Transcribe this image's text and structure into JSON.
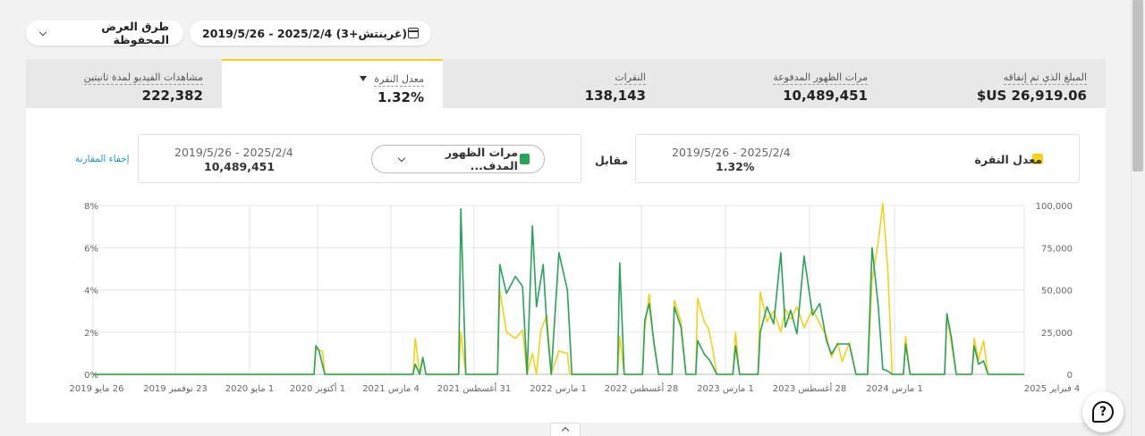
{
  "header": {
    "date_range": "2019/5/26 - 2025/2/4 (غرينتش+3)",
    "saved_views": "طرق العرض المحفوظة"
  },
  "metrics": [
    {
      "label": "المبلغ الذي تم إنفاقه",
      "value": "$US 26,919.06"
    },
    {
      "label": "مرات الظهور المدفوعة",
      "value": "10,489,451"
    },
    {
      "label": "النقرات",
      "value": "138,143"
    },
    {
      "label": "معدل النقرة",
      "value": "1.32%",
      "active": true
    },
    {
      "label": "مشاهدات الفيديو لمدة ثانيتين",
      "value": "222,382"
    }
  ],
  "comparison": {
    "primary": {
      "name": "معدل النقرة",
      "date": "2019/5/26 - 2025/2/4",
      "value": "1.32%",
      "color": "#f5d218"
    },
    "vs_label": "مقابل",
    "secondary": {
      "name": "مرات الظهور المدف...",
      "date": "2019/5/26 - 2025/2/4",
      "value": "10,489,451",
      "color": "#27a35a"
    },
    "hide_link": "إخفاء المقارنة"
  },
  "chart_data": {
    "type": "line",
    "title": "",
    "x_tick_labels": [
      "26 مايو 2019",
      "23 نوفمبر 2019",
      "1 مايو 2020",
      "1 أكتوبر 2020",
      "4 مارس 2021",
      "31 أغسطس 2021",
      "1 مارس 2022",
      "28 أغسطس 2022",
      "1 مارس 2023",
      "28 أغسطس 2023",
      "1 مارس 2024",
      "4 فبراير 2025"
    ],
    "y_left": {
      "ticks": [
        "0%",
        "2%",
        "4%",
        "6%",
        "8%"
      ],
      "ylim": [
        0,
        8
      ]
    },
    "y_right": {
      "ticks": [
        "0",
        "25,000",
        "50,000",
        "75,000",
        "100,000"
      ],
      "ylim": [
        0,
        100000
      ]
    },
    "series": [
      {
        "name": "معدل النقرة",
        "color": "#f5d218",
        "axis": "left",
        "points": [
          [
            "2019-05-26",
            0
          ],
          [
            "2020-10-01",
            0
          ],
          [
            "2020-10-05",
            1.2
          ],
          [
            "2020-10-20",
            1.1
          ],
          [
            "2020-10-25",
            0
          ],
          [
            "2021-05-10",
            0
          ],
          [
            "2021-05-15",
            1.7
          ],
          [
            "2021-05-25",
            0
          ],
          [
            "2021-06-01",
            0.8
          ],
          [
            "2021-06-08",
            0
          ],
          [
            "2021-08-20",
            0
          ],
          [
            "2021-08-25",
            2.0
          ],
          [
            "2021-09-05",
            0
          ],
          [
            "2021-11-15",
            0
          ],
          [
            "2021-11-20",
            4.0
          ],
          [
            "2021-12-05",
            2.0
          ],
          [
            "2021-12-25",
            1.7
          ],
          [
            "2022-01-10",
            2.1
          ],
          [
            "2022-01-20",
            0
          ],
          [
            "2022-02-01",
            1.0
          ],
          [
            "2022-02-10",
            0
          ],
          [
            "2022-02-20",
            2.1
          ],
          [
            "2022-03-05",
            2.8
          ],
          [
            "2022-03-15",
            0
          ],
          [
            "2022-04-01",
            1.1
          ],
          [
            "2022-04-20",
            1.0
          ],
          [
            "2022-04-25",
            0
          ],
          [
            "2022-08-10",
            0
          ],
          [
            "2022-08-15",
            1.8
          ],
          [
            "2022-08-25",
            0
          ],
          [
            "2022-10-05",
            0
          ],
          [
            "2022-10-10",
            2.2
          ],
          [
            "2022-10-20",
            3.8
          ],
          [
            "2022-10-30",
            1.5
          ],
          [
            "2022-11-10",
            0
          ],
          [
            "2022-12-10",
            0
          ],
          [
            "2022-12-15",
            3.5
          ],
          [
            "2022-12-30",
            2.5
          ],
          [
            "2023-01-10",
            0
          ],
          [
            "2023-02-01",
            0
          ],
          [
            "2023-02-05",
            3.6
          ],
          [
            "2023-02-20",
            2.5
          ],
          [
            "2023-03-01",
            2.2
          ],
          [
            "2023-03-10",
            1.3
          ],
          [
            "2023-03-20",
            0
          ],
          [
            "2023-04-25",
            0
          ],
          [
            "2023-05-01",
            2.0
          ],
          [
            "2023-05-10",
            0
          ],
          [
            "2023-06-20",
            0
          ],
          [
            "2023-06-25",
            3.9
          ],
          [
            "2023-07-10",
            2.5
          ],
          [
            "2023-07-25",
            3.0
          ],
          [
            "2023-08-10",
            2.0
          ],
          [
            "2023-08-20",
            3.1
          ],
          [
            "2023-09-01",
            2.6
          ],
          [
            "2023-09-15",
            3.2
          ],
          [
            "2023-10-01",
            2.2
          ],
          [
            "2023-10-20",
            3.1
          ],
          [
            "2023-11-05",
            2.4
          ],
          [
            "2023-11-20",
            1.8
          ],
          [
            "2023-12-01",
            0.8
          ],
          [
            "2023-12-15",
            1.5
          ],
          [
            "2023-12-25",
            0.6
          ],
          [
            "2024-01-10",
            1.5
          ],
          [
            "2024-01-25",
            0
          ],
          [
            "2024-02-20",
            0
          ],
          [
            "2024-03-01",
            4.5
          ],
          [
            "2024-03-15",
            6.3
          ],
          [
            "2024-03-25",
            8.1
          ],
          [
            "2024-04-05",
            5.0
          ],
          [
            "2024-04-15",
            0
          ],
          [
            "2024-05-10",
            0
          ],
          [
            "2024-05-15",
            1.8
          ],
          [
            "2024-05-25",
            0
          ],
          [
            "2024-08-10",
            0
          ],
          [
            "2024-08-15",
            2.8
          ],
          [
            "2024-08-25",
            1.5
          ],
          [
            "2024-09-05",
            0
          ],
          [
            "2024-10-10",
            0
          ],
          [
            "2024-10-15",
            1.7
          ],
          [
            "2024-10-25",
            0.7
          ],
          [
            "2024-11-05",
            1.6
          ],
          [
            "2024-11-15",
            0
          ],
          [
            "2025-02-04",
            0
          ]
        ]
      },
      {
        "name": "مرات الظهور المدف...",
        "color": "#27a35a",
        "axis": "right",
        "points": [
          [
            "2019-05-26",
            0
          ],
          [
            "2020-10-01",
            0
          ],
          [
            "2020-10-05",
            17000
          ],
          [
            "2020-10-12",
            14000
          ],
          [
            "2020-10-25",
            0
          ],
          [
            "2021-05-10",
            0
          ],
          [
            "2021-05-15",
            6000
          ],
          [
            "2021-05-25",
            0
          ],
          [
            "2021-06-01",
            10000
          ],
          [
            "2021-06-08",
            0
          ],
          [
            "2021-08-20",
            0
          ],
          [
            "2021-08-25",
            98000
          ],
          [
            "2021-09-05",
            0
          ],
          [
            "2021-11-15",
            0
          ],
          [
            "2021-11-20",
            65000
          ],
          [
            "2021-12-05",
            48000
          ],
          [
            "2021-12-25",
            58000
          ],
          [
            "2022-01-10",
            52000
          ],
          [
            "2022-01-20",
            0
          ],
          [
            "2022-02-01",
            88000
          ],
          [
            "2022-02-10",
            40000
          ],
          [
            "2022-02-25",
            65000
          ],
          [
            "2022-03-05",
            30000
          ],
          [
            "2022-03-15",
            0
          ],
          [
            "2022-04-01",
            72000
          ],
          [
            "2022-04-20",
            50000
          ],
          [
            "2022-04-30",
            0
          ],
          [
            "2022-08-10",
            0
          ],
          [
            "2022-08-15",
            66000
          ],
          [
            "2022-08-25",
            0
          ],
          [
            "2022-10-05",
            0
          ],
          [
            "2022-10-10",
            32000
          ],
          [
            "2022-10-20",
            42000
          ],
          [
            "2022-10-30",
            20000
          ],
          [
            "2022-11-10",
            0
          ],
          [
            "2022-12-10",
            0
          ],
          [
            "2022-12-15",
            40000
          ],
          [
            "2022-12-30",
            28000
          ],
          [
            "2023-01-10",
            0
          ],
          [
            "2023-02-01",
            0
          ],
          [
            "2023-02-05",
            20000
          ],
          [
            "2023-02-20",
            12000
          ],
          [
            "2023-03-05",
            8000
          ],
          [
            "2023-03-20",
            0
          ],
          [
            "2023-04-25",
            0
          ],
          [
            "2023-05-01",
            17000
          ],
          [
            "2023-05-10",
            0
          ],
          [
            "2023-06-20",
            0
          ],
          [
            "2023-06-25",
            25000
          ],
          [
            "2023-07-10",
            40000
          ],
          [
            "2023-07-25",
            30000
          ],
          [
            "2023-08-10",
            72000
          ],
          [
            "2023-08-20",
            28000
          ],
          [
            "2023-09-01",
            38000
          ],
          [
            "2023-09-15",
            24000
          ],
          [
            "2023-10-01",
            70000
          ],
          [
            "2023-10-20",
            35000
          ],
          [
            "2023-11-05",
            42000
          ],
          [
            "2023-11-20",
            20000
          ],
          [
            "2023-12-01",
            12000
          ],
          [
            "2023-12-15",
            18000
          ],
          [
            "2024-01-10",
            18000
          ],
          [
            "2024-01-25",
            0
          ],
          [
            "2024-02-20",
            0
          ],
          [
            "2024-03-01",
            75000
          ],
          [
            "2024-03-15",
            40000
          ],
          [
            "2024-03-25",
            3000
          ],
          [
            "2024-04-05",
            2000
          ],
          [
            "2024-04-15",
            0
          ],
          [
            "2024-05-10",
            0
          ],
          [
            "2024-05-15",
            18000
          ],
          [
            "2024-05-25",
            0
          ],
          [
            "2024-08-10",
            0
          ],
          [
            "2024-08-15",
            36000
          ],
          [
            "2024-08-25",
            22000
          ],
          [
            "2024-09-05",
            0
          ],
          [
            "2024-10-10",
            0
          ],
          [
            "2024-10-15",
            17000
          ],
          [
            "2024-10-25",
            6000
          ],
          [
            "2024-11-05",
            8000
          ],
          [
            "2024-11-15",
            0
          ],
          [
            "2025-02-04",
            0
          ]
        ]
      }
    ],
    "grid": true,
    "legend_position": "top"
  }
}
